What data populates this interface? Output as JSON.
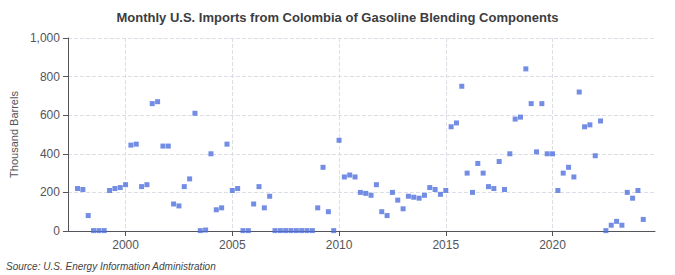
{
  "chart_data": {
    "type": "scatter",
    "title": "Monthly U.S. Imports from Colombia of Gasoline Blending Components",
    "ylabel": "Thousand Barrels",
    "annotations": [
      "Source: U.S. Energy Information Administration"
    ],
    "marker": "square",
    "grid": true,
    "xlim": [
      1997.3,
      2024.8
    ],
    "xticks": [
      2000,
      2005,
      2010,
      2015,
      2020
    ],
    "ylim": [
      0,
      1000
    ],
    "yticks": [
      0,
      200,
      400,
      600,
      800,
      {
        "value": 1000,
        "label": "1,000"
      }
    ],
    "x": [
      1997.75,
      1998.0,
      1998.25,
      1998.5,
      1998.75,
      1999.0,
      1999.25,
      1999.5,
      1999.75,
      2000.0,
      2000.25,
      2000.5,
      2000.75,
      2001.0,
      2001.25,
      2001.5,
      2001.75,
      2002.0,
      2002.25,
      2002.5,
      2002.75,
      2003.0,
      2003.25,
      2003.5,
      2003.75,
      2004.0,
      2004.25,
      2004.5,
      2004.75,
      2005.0,
      2005.25,
      2005.5,
      2005.75,
      2006.0,
      2006.25,
      2006.5,
      2006.75,
      2007.0,
      2007.25,
      2007.5,
      2007.75,
      2008.0,
      2008.25,
      2008.5,
      2008.75,
      2009.0,
      2009.25,
      2009.5,
      2009.75,
      2010.0,
      2010.25,
      2010.5,
      2010.75,
      2011.0,
      2011.25,
      2011.5,
      2011.75,
      2012.0,
      2012.25,
      2012.5,
      2012.75,
      2013.0,
      2013.25,
      2013.5,
      2013.75,
      2014.0,
      2014.25,
      2014.5,
      2014.75,
      2015.0,
      2015.25,
      2015.5,
      2015.75,
      2016.0,
      2016.25,
      2016.5,
      2016.75,
      2017.0,
      2017.25,
      2017.5,
      2017.75,
      2018.0,
      2018.25,
      2018.5,
      2018.75,
      2019.0,
      2019.25,
      2019.5,
      2019.75,
      2020.0,
      2020.25,
      2020.5,
      2020.75,
      2021.0,
      2021.25,
      2021.5,
      2021.75,
      2022.0,
      2022.25,
      2022.5,
      2022.75,
      2023.0,
      2023.25,
      2023.5,
      2023.75,
      2024.0,
      2024.25
    ],
    "values": [
      220,
      215,
      80,
      2,
      2,
      2,
      210,
      220,
      225,
      240,
      445,
      450,
      230,
      240,
      660,
      670,
      440,
      440,
      140,
      130,
      230,
      270,
      610,
      2,
      5,
      400,
      110,
      120,
      450,
      210,
      220,
      2,
      2,
      140,
      230,
      120,
      180,
      2,
      2,
      2,
      2,
      2,
      2,
      2,
      2,
      120,
      330,
      100,
      2,
      470,
      280,
      290,
      280,
      200,
      195,
      185,
      240,
      100,
      80,
      200,
      160,
      115,
      180,
      175,
      170,
      185,
      225,
      215,
      190,
      210,
      540,
      560,
      750,
      300,
      200,
      350,
      300,
      230,
      220,
      360,
      215,
      400,
      580,
      590,
      840,
      660,
      410,
      660,
      400,
      400,
      210,
      300,
      330,
      280,
      720,
      540,
      550,
      390,
      570,
      2,
      30,
      50,
      30,
      200,
      170,
      210,
      60
    ]
  }
}
